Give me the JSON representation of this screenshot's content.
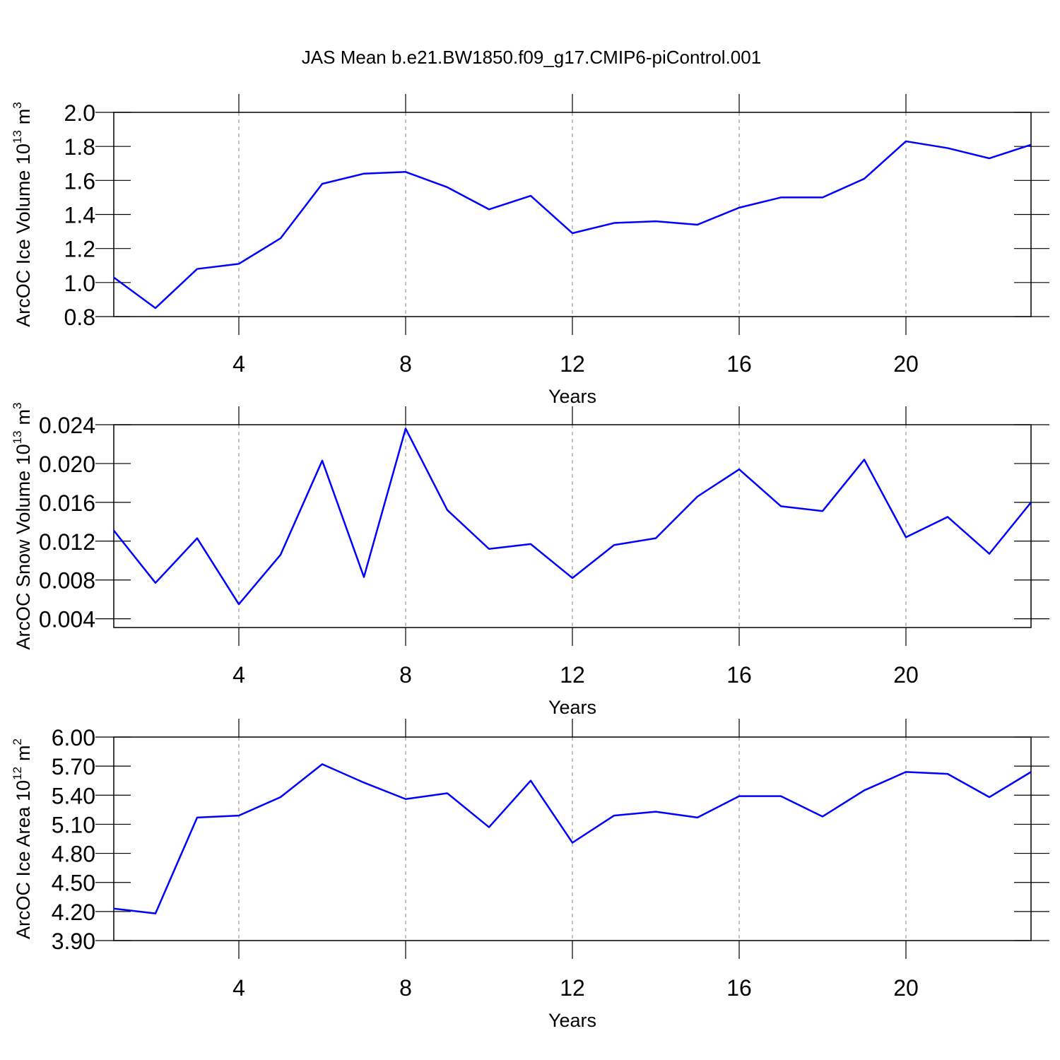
{
  "title": "JAS Mean b.e21.BW1850.f09_g17.CMIP6-piControl.001",
  "chart_data": [
    {
      "type": "line",
      "xlabel": "Years",
      "ylabel": {
        "text": "ArcOC Ice Volume 10",
        "exponent": "13",
        "unit": "m",
        "unit_exponent": "3"
      },
      "x": [
        1,
        2,
        3,
        4,
        5,
        6,
        7,
        8,
        9,
        10,
        11,
        12,
        13,
        14,
        15,
        16,
        17,
        18,
        19,
        20,
        21,
        22,
        23
      ],
      "values": [
        1.03,
        0.85,
        1.08,
        1.11,
        1.26,
        1.58,
        1.64,
        1.65,
        1.56,
        1.43,
        1.51,
        1.29,
        1.35,
        1.36,
        1.34,
        1.44,
        1.5,
        1.5,
        1.61,
        1.83,
        1.79,
        1.73,
        1.81
      ],
      "color": "#0000ff",
      "xlim": [
        1,
        23
      ],
      "xticks": [
        4,
        8,
        12,
        16,
        20
      ],
      "ylim": [
        0.8,
        2.0
      ],
      "yticks": [
        0.8,
        {
          "value": 1,
          "label": "1.0"
        },
        1.2,
        1.4,
        1.6,
        1.8,
        {
          "value": 2,
          "label": "2.0"
        }
      ],
      "grid": true
    },
    {
      "type": "line",
      "xlabel": "Years",
      "ylabel": {
        "text": "ArcOC Snow Volume 10",
        "exponent": "13",
        "unit": "m",
        "unit_exponent": "3"
      },
      "x": [
        1,
        2,
        3,
        4,
        5,
        6,
        7,
        8,
        9,
        10,
        11,
        12,
        13,
        14,
        15,
        16,
        17,
        18,
        19,
        20,
        21,
        22,
        23
      ],
      "values": [
        0.0131,
        0.0077,
        0.0123,
        0.0055,
        0.0106,
        0.0203,
        0.0083,
        0.0236,
        0.0152,
        0.0112,
        0.0117,
        0.0082,
        0.0116,
        0.0123,
        0.0166,
        0.0194,
        0.0156,
        0.0151,
        0.0204,
        0.0124,
        0.0145,
        0.0107,
        0.016
      ],
      "color": "#0000ff",
      "xlim": [
        1,
        23
      ],
      "xticks": [
        4,
        8,
        12,
        16,
        20
      ],
      "ylim": [
        0.0031,
        0.024
      ],
      "yticks": [
        0.004,
        0.008,
        0.012,
        0.016,
        {
          "value": 0.02,
          "label": "0.020"
        },
        0.024
      ],
      "grid": true
    },
    {
      "type": "line",
      "xlabel": "Years",
      "ylabel": {
        "text": "ArcOC Ice Area 10",
        "exponent": "12",
        "unit": "m",
        "unit_exponent": "2"
      },
      "x": [
        1,
        2,
        3,
        4,
        5,
        6,
        7,
        8,
        9,
        10,
        11,
        12,
        13,
        14,
        15,
        16,
        17,
        18,
        19,
        20,
        21,
        22,
        23
      ],
      "values": [
        4.23,
        4.18,
        5.17,
        5.19,
        5.38,
        5.72,
        5.53,
        5.36,
        5.42,
        5.07,
        5.55,
        4.91,
        5.19,
        5.23,
        5.17,
        5.39,
        5.39,
        5.18,
        5.45,
        5.64,
        5.62,
        5.38,
        5.64
      ],
      "color": "#0000ff",
      "xlim": [
        1,
        23
      ],
      "xticks": [
        4,
        8,
        12,
        16,
        20
      ],
      "ylim": [
        3.9,
        6.0
      ],
      "yticks": [
        {
          "value": 3.9,
          "label": "3.90"
        },
        {
          "value": 4.2,
          "label": "4.20"
        },
        {
          "value": 4.5,
          "label": "4.50"
        },
        {
          "value": 4.8,
          "label": "4.80"
        },
        {
          "value": 5.1,
          "label": "5.10"
        },
        {
          "value": 5.4,
          "label": "5.40"
        },
        {
          "value": 5.7,
          "label": "5.70"
        },
        {
          "value": 6,
          "label": "6.00"
        }
      ],
      "grid": true
    }
  ]
}
